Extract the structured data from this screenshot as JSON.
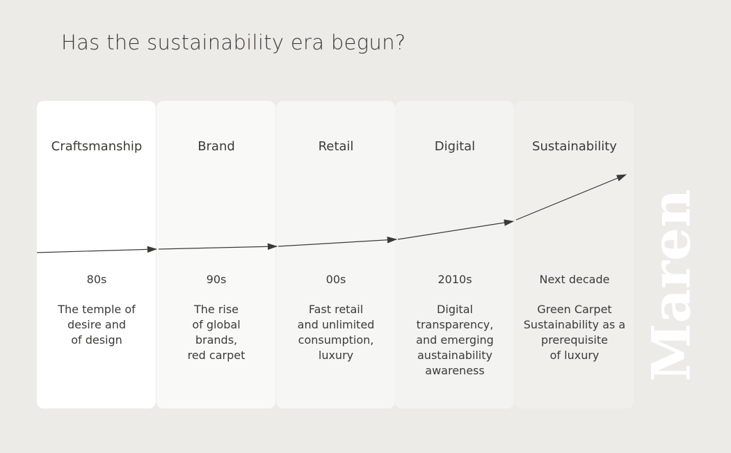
{
  "title": "Has the sustainability era begun?",
  "brand": "Maren",
  "columns": [
    {
      "label": "Craftsmanship",
      "era": "80s",
      "description": [
        "The temple of",
        "desire and",
        "of design"
      ]
    },
    {
      "label": "Brand",
      "era": "90s",
      "description": [
        "The rise",
        "of global",
        "brands,",
        "red carpet"
      ]
    },
    {
      "label": "Retail",
      "era": "00s",
      "description": [
        "Fast retail",
        "and unlimited",
        "consumption,",
        "luxury"
      ]
    },
    {
      "label": "Digital",
      "era": "2010s",
      "description": [
        "Digital",
        "transparency,",
        "and emerging",
        "austainability",
        "awareness"
      ]
    },
    {
      "label": "Sustainability",
      "era": "Next decade",
      "description": [
        "Green Carpet",
        "Sustainability as a",
        "prerequisite",
        "of luxury"
      ]
    }
  ]
}
